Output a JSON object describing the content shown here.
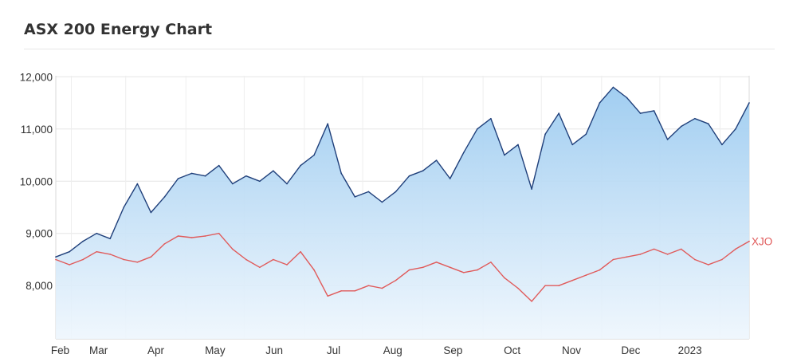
{
  "title": "ASX 200 Energy Chart",
  "chart_data": {
    "type": "line",
    "title": "ASX 200 Energy Chart",
    "xlabel": "",
    "ylabel": "",
    "ylim": [
      6980,
      12020
    ],
    "grid": true,
    "x_tick_labels": [
      "Feb",
      "Mar",
      "Apr",
      "May",
      "Jun",
      "Jul",
      "Aug",
      "Sep",
      "Oct",
      "Nov",
      "Dec",
      "2023"
    ],
    "y_ticks": [
      8000,
      9000,
      10000,
      11000,
      12000
    ],
    "y_tick_labels": [
      "8,000",
      "9,000",
      "10,000",
      "11,000",
      "12,000"
    ],
    "x": [
      "2022-01-24",
      "2022-01-31",
      "2022-02-07",
      "2022-02-14",
      "2022-02-21",
      "2022-02-28",
      "2022-03-07",
      "2022-03-14",
      "2022-03-21",
      "2022-03-28",
      "2022-04-04",
      "2022-04-11",
      "2022-04-18",
      "2022-04-25",
      "2022-05-02",
      "2022-05-09",
      "2022-05-16",
      "2022-05-23",
      "2022-05-30",
      "2022-06-06",
      "2022-06-13",
      "2022-06-20",
      "2022-06-27",
      "2022-07-04",
      "2022-07-11",
      "2022-07-18",
      "2022-07-25",
      "2022-08-01",
      "2022-08-08",
      "2022-08-15",
      "2022-08-22",
      "2022-08-29",
      "2022-09-05",
      "2022-09-12",
      "2022-09-19",
      "2022-09-26",
      "2022-10-03",
      "2022-10-10",
      "2022-10-17",
      "2022-10-24",
      "2022-10-31",
      "2022-11-07",
      "2022-11-14",
      "2022-11-21",
      "2022-11-28",
      "2022-12-05",
      "2022-12-12",
      "2022-12-19",
      "2022-12-26",
      "2023-01-02",
      "2023-01-09",
      "2023-01-16"
    ],
    "series": [
      {
        "name": "",
        "color": "#1f3f7a",
        "fill": true,
        "values": [
          8550,
          8650,
          8850,
          9000,
          8900,
          9500,
          9950,
          9400,
          9700,
          10050,
          10150,
          10100,
          10300,
          9950,
          10100,
          10000,
          10200,
          9950,
          10300,
          10500,
          11100,
          10150,
          9700,
          9800,
          9600,
          9800,
          10100,
          10200,
          10400,
          10050,
          10550,
          11000,
          11200,
          10500,
          10700,
          9850,
          10900,
          11300,
          10700,
          10900,
          11500,
          11800,
          11600,
          11300,
          11350,
          10800,
          11050,
          11200,
          11100,
          10700,
          11000,
          11500
        ]
      },
      {
        "name": "XJO",
        "color": "#e05a5a",
        "fill": false,
        "values": [
          8500,
          8400,
          8500,
          8650,
          8600,
          8500,
          8450,
          8550,
          8800,
          8950,
          8920,
          8950,
          9000,
          8700,
          8500,
          8350,
          8500,
          8400,
          8650,
          8300,
          7800,
          7900,
          7900,
          8000,
          7950,
          8100,
          8300,
          8350,
          8450,
          8350,
          8250,
          8300,
          8450,
          8150,
          7950,
          7700,
          8000,
          8000,
          8100,
          8200,
          8300,
          8500,
          8550,
          8600,
          8700,
          8600,
          8700,
          8500,
          8400,
          8500,
          8700,
          8850
        ]
      }
    ]
  }
}
